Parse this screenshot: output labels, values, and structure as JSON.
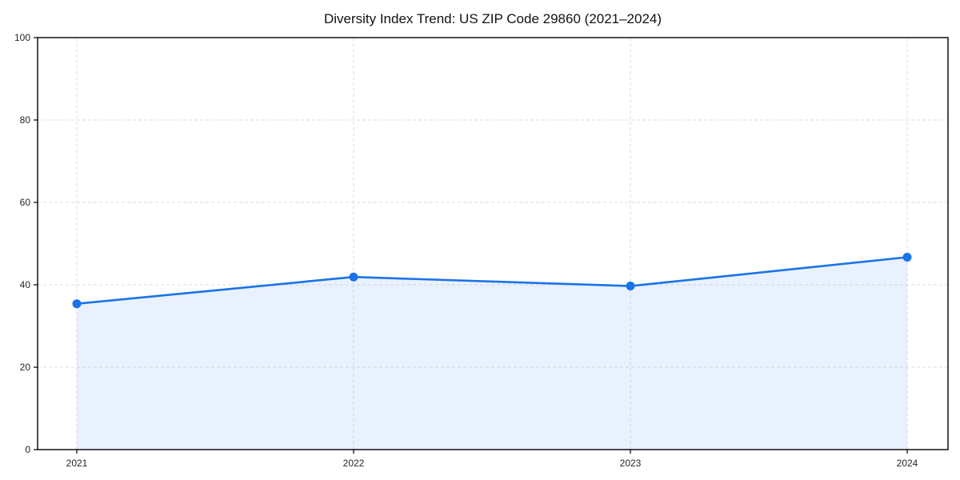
{
  "chart_data": {
    "type": "line",
    "title": "Diversity Index Trend: US ZIP Code 29860 (2021–2024)",
    "categories": [
      "2021",
      "2022",
      "2023",
      "2024"
    ],
    "series": [
      {
        "name": "Diversity Index",
        "values": [
          35.4,
          41.9,
          39.7,
          46.7
        ]
      }
    ],
    "xlabel": "",
    "ylabel": "",
    "ylim": [
      0,
      100
    ],
    "yticks": [
      0,
      20,
      40,
      60,
      80,
      100
    ],
    "grid": true,
    "grid_style": "dashed",
    "legend_position": "none",
    "area_fill": true,
    "marker": "circle",
    "colors": {
      "line": "#1a73e8",
      "marker": "#1a73e8",
      "area_fill": "#1a73e8",
      "area_fill_opacity": 0.1,
      "grid": "#dedede",
      "spine": "#000000"
    }
  }
}
